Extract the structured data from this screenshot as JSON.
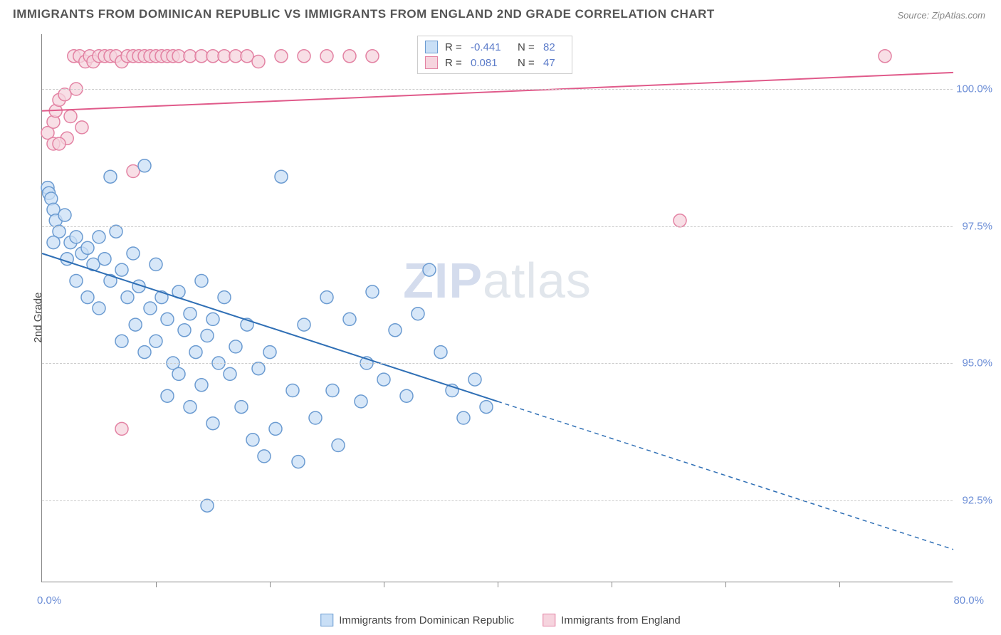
{
  "title": "IMMIGRANTS FROM DOMINICAN REPUBLIC VS IMMIGRANTS FROM ENGLAND 2ND GRADE CORRELATION CHART",
  "source_label": "Source: ZipAtlas.com",
  "ylabel": "2nd Grade",
  "watermark_a": "ZIP",
  "watermark_b": "atlas",
  "chart": {
    "type": "scatter",
    "xlim": [
      0,
      80
    ],
    "ylim": [
      91,
      101
    ],
    "xtick_positions": [
      10,
      20,
      30,
      40,
      50,
      60,
      70
    ],
    "ytick_positions": [
      92.5,
      95.0,
      97.5,
      100.0
    ],
    "ytick_labels": [
      "92.5%",
      "95.0%",
      "97.5%",
      "100.0%"
    ],
    "xlim_labels": {
      "min": "0.0%",
      "max": "80.0%"
    },
    "grid_color": "#cccccc",
    "axis_color": "#888888",
    "background_color": "#ffffff",
    "marker_radius": 9,
    "marker_stroke_width": 1.5,
    "line_width_solid": 2,
    "line_width_dash": 1.5,
    "dash_pattern": "6,5"
  },
  "series": {
    "dr": {
      "label": "Immigrants from Dominican Republic",
      "fill": "#c9dff6",
      "stroke": "#6b9bd1",
      "line_color": "#2f6fb5",
      "R": "-0.441",
      "N": "82",
      "trend_solid": {
        "x1": 0,
        "y1": 97.0,
        "x2": 40,
        "y2": 94.3
      },
      "trend_dash": {
        "x1": 40,
        "y1": 94.3,
        "x2": 80,
        "y2": 91.6
      },
      "points": [
        [
          0.5,
          98.2
        ],
        [
          0.6,
          98.1
        ],
        [
          0.8,
          98.0
        ],
        [
          1.0,
          97.8
        ],
        [
          1.2,
          97.6
        ],
        [
          1.5,
          97.4
        ],
        [
          1.0,
          97.2
        ],
        [
          2.0,
          97.7
        ],
        [
          2.5,
          97.2
        ],
        [
          2.2,
          96.9
        ],
        [
          3.0,
          97.3
        ],
        [
          3.5,
          97.0
        ],
        [
          3.0,
          96.5
        ],
        [
          4.0,
          97.1
        ],
        [
          4.5,
          96.8
        ],
        [
          4.0,
          96.2
        ],
        [
          5.0,
          97.3
        ],
        [
          5.5,
          96.9
        ],
        [
          5.0,
          96.0
        ],
        [
          6.0,
          98.4
        ],
        [
          6.5,
          97.4
        ],
        [
          6.0,
          96.5
        ],
        [
          7.0,
          96.7
        ],
        [
          7.5,
          96.2
        ],
        [
          7.0,
          95.4
        ],
        [
          8.0,
          97.0
        ],
        [
          8.5,
          96.4
        ],
        [
          8.2,
          95.7
        ],
        [
          9.0,
          98.6
        ],
        [
          9.5,
          96.0
        ],
        [
          9.0,
          95.2
        ],
        [
          10.0,
          96.8
        ],
        [
          10.5,
          96.2
        ],
        [
          10.0,
          95.4
        ],
        [
          11.0,
          95.8
        ],
        [
          11.5,
          95.0
        ],
        [
          11.0,
          94.4
        ],
        [
          12.0,
          96.3
        ],
        [
          12.5,
          95.6
        ],
        [
          12.0,
          94.8
        ],
        [
          13.0,
          95.9
        ],
        [
          13.5,
          95.2
        ],
        [
          13.0,
          94.2
        ],
        [
          14.0,
          96.5
        ],
        [
          14.5,
          95.5
        ],
        [
          14.0,
          94.6
        ],
        [
          15.0,
          95.8
        ],
        [
          15.5,
          95.0
        ],
        [
          15.0,
          93.9
        ],
        [
          16.0,
          96.2
        ],
        [
          16.5,
          94.8
        ],
        [
          17.0,
          95.3
        ],
        [
          17.5,
          94.2
        ],
        [
          18.0,
          95.7
        ],
        [
          18.5,
          93.6
        ],
        [
          19.0,
          94.9
        ],
        [
          19.5,
          93.3
        ],
        [
          20.0,
          95.2
        ],
        [
          20.5,
          93.8
        ],
        [
          21.0,
          98.4
        ],
        [
          22.0,
          94.5
        ],
        [
          22.5,
          93.2
        ],
        [
          23.0,
          95.7
        ],
        [
          24.0,
          94.0
        ],
        [
          25.0,
          96.2
        ],
        [
          25.5,
          94.5
        ],
        [
          26.0,
          93.5
        ],
        [
          27.0,
          95.8
        ],
        [
          28.0,
          94.3
        ],
        [
          28.5,
          95.0
        ],
        [
          29.0,
          96.3
        ],
        [
          30.0,
          94.7
        ],
        [
          31.0,
          95.6
        ],
        [
          32.0,
          94.4
        ],
        [
          33.0,
          95.9
        ],
        [
          34.0,
          96.7
        ],
        [
          35.0,
          95.2
        ],
        [
          36.0,
          94.5
        ],
        [
          37.0,
          94.0
        ],
        [
          38.0,
          94.7
        ],
        [
          39.0,
          94.2
        ],
        [
          14.5,
          92.4
        ]
      ]
    },
    "en": {
      "label": "Immigrants from England",
      "fill": "#f6d4de",
      "stroke": "#e382a3",
      "line_color": "#e05a8a",
      "R": "0.081",
      "N": "47",
      "trend_solid": {
        "x1": 0,
        "y1": 99.6,
        "x2": 80,
        "y2": 100.3
      },
      "points": [
        [
          0.5,
          99.2
        ],
        [
          1.0,
          99.4
        ],
        [
          1.2,
          99.6
        ],
        [
          1.5,
          99.8
        ],
        [
          2.0,
          99.9
        ],
        [
          2.2,
          99.1
        ],
        [
          2.5,
          99.5
        ],
        [
          2.8,
          100.6
        ],
        [
          1.0,
          99.0
        ],
        [
          3.0,
          100.0
        ],
        [
          3.3,
          100.6
        ],
        [
          3.5,
          99.3
        ],
        [
          3.8,
          100.5
        ],
        [
          4.2,
          100.6
        ],
        [
          4.5,
          100.5
        ],
        [
          5.0,
          100.6
        ],
        [
          5.5,
          100.6
        ],
        [
          6.0,
          100.6
        ],
        [
          6.5,
          100.6
        ],
        [
          7.0,
          100.5
        ],
        [
          7.5,
          100.6
        ],
        [
          8.0,
          100.6
        ],
        [
          8.5,
          100.6
        ],
        [
          9.0,
          100.6
        ],
        [
          9.5,
          100.6
        ],
        [
          10.0,
          100.6
        ],
        [
          10.5,
          100.6
        ],
        [
          11.0,
          100.6
        ],
        [
          11.5,
          100.6
        ],
        [
          12.0,
          100.6
        ],
        [
          13.0,
          100.6
        ],
        [
          14.0,
          100.6
        ],
        [
          15.0,
          100.6
        ],
        [
          16.0,
          100.6
        ],
        [
          17.0,
          100.6
        ],
        [
          18.0,
          100.6
        ],
        [
          19.0,
          100.5
        ],
        [
          21.0,
          100.6
        ],
        [
          23.0,
          100.6
        ],
        [
          25.0,
          100.6
        ],
        [
          27.0,
          100.6
        ],
        [
          29.0,
          100.6
        ],
        [
          8.0,
          98.5
        ],
        [
          7.0,
          93.8
        ],
        [
          56.0,
          97.6
        ],
        [
          74.0,
          100.6
        ],
        [
          1.5,
          99.0
        ]
      ]
    }
  },
  "corr_box": {
    "R_label": "R =",
    "N_label": "N ="
  }
}
